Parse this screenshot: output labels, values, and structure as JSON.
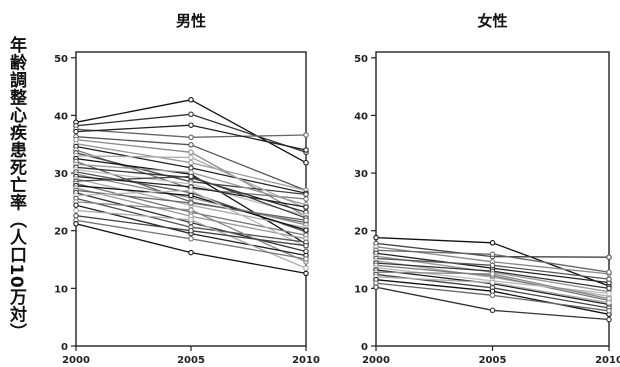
{
  "figure": {
    "ylabel": "年齢調整心疾患死亡率（人口10万対）"
  },
  "chart_data": [
    {
      "type": "line",
      "title": "男性",
      "x": [
        2000,
        2005,
        2010
      ],
      "xticks": [
        "2000",
        "2005",
        "2010"
      ],
      "yticks": [
        "0",
        "10",
        "20",
        "30",
        "40",
        "50"
      ],
      "ylim": [
        0,
        51
      ],
      "grid": false,
      "legend": "none",
      "series": [
        {
          "values": [
            38.8,
            42.7,
            31.8
          ],
          "color": "#111111"
        },
        {
          "values": [
            38.2,
            40.2,
            33.6
          ],
          "color": "#333333"
        },
        {
          "values": [
            37.6,
            36.2,
            36.6
          ],
          "color": "#666666"
        },
        {
          "values": [
            37.2,
            38.3,
            34.0
          ],
          "color": "#222222"
        },
        {
          "values": [
            36.3,
            34.9,
            27.0
          ],
          "color": "#555555"
        },
        {
          "values": [
            35.8,
            33.6,
            22.5
          ],
          "color": "#888888"
        },
        {
          "values": [
            35.1,
            31.8,
            27.0
          ],
          "color": "#999999"
        },
        {
          "values": [
            34.6,
            30.9,
            26.5
          ],
          "color": "#222222"
        },
        {
          "values": [
            34.0,
            27.3,
            25.5
          ],
          "color": "#777777"
        },
        {
          "values": [
            33.5,
            28.5,
            26.3
          ],
          "color": "#444444"
        },
        {
          "values": [
            33.0,
            32.7,
            23.9
          ],
          "color": "#aaaaaa"
        },
        {
          "values": [
            32.5,
            29.8,
            17.7
          ],
          "color": "#111111"
        },
        {
          "values": [
            32.0,
            25.0,
            21.4
          ],
          "color": "#666666"
        },
        {
          "values": [
            31.5,
            30.1,
            24.5
          ],
          "color": "#999999"
        },
        {
          "values": [
            31.0,
            29.2,
            23.2
          ],
          "color": "#333333"
        },
        {
          "values": [
            30.6,
            28.1,
            22.6
          ],
          "color": "#bbbbbb"
        },
        {
          "values": [
            30.2,
            26.6,
            19.8
          ],
          "color": "#555555"
        },
        {
          "values": [
            29.8,
            25.7,
            21.0
          ],
          "color": "#888888"
        },
        {
          "values": [
            29.4,
            27.6,
            24.1
          ],
          "color": "#222222"
        },
        {
          "values": [
            29.0,
            24.4,
            20.5
          ],
          "color": "#aaaaaa"
        },
        {
          "values": [
            28.6,
            29.4,
            22.2
          ],
          "color": "#444444"
        },
        {
          "values": [
            28.2,
            23.2,
            19.2
          ],
          "color": "#777777"
        },
        {
          "values": [
            27.8,
            26.1,
            20.1
          ],
          "color": "#111111"
        },
        {
          "values": [
            27.4,
            22.5,
            18.6
          ],
          "color": "#999999"
        },
        {
          "values": [
            27.0,
            24.8,
            21.8
          ],
          "color": "#666666"
        },
        {
          "values": [
            26.6,
            21.4,
            16.4
          ],
          "color": "#333333"
        },
        {
          "values": [
            26.1,
            27.0,
            17.2
          ],
          "color": "#bbbbbb"
        },
        {
          "values": [
            25.6,
            20.6,
            18.0
          ],
          "color": "#555555"
        },
        {
          "values": [
            25.0,
            23.6,
            14.6
          ],
          "color": "#888888"
        },
        {
          "values": [
            24.4,
            19.5,
            15.7
          ],
          "color": "#222222"
        },
        {
          "values": [
            23.5,
            21.9,
            13.5
          ],
          "color": "#aaaaaa"
        },
        {
          "values": [
            22.6,
            20.0,
            17.4
          ],
          "color": "#444444"
        },
        {
          "values": [
            21.8,
            18.6,
            15.1
          ],
          "color": "#777777"
        },
        {
          "values": [
            21.2,
            16.2,
            12.6
          ],
          "color": "#111111"
        }
      ]
    },
    {
      "type": "line",
      "title": "女性",
      "x": [
        2000,
        2005,
        2010
      ],
      "xticks": [
        "2000",
        "2005",
        "2010"
      ],
      "yticks": [
        "0",
        "10",
        "20",
        "30",
        "40",
        "50"
      ],
      "ylim": [
        0,
        51
      ],
      "grid": false,
      "legend": "none",
      "series": [
        {
          "values": [
            18.8,
            17.9,
            10.4
          ],
          "color": "#111111"
        },
        {
          "values": [
            17.8,
            15.5,
            15.4
          ],
          "color": "#444444"
        },
        {
          "values": [
            17.2,
            14.6,
            12.5
          ],
          "color": "#888888"
        },
        {
          "values": [
            16.6,
            15.9,
            12.8
          ],
          "color": "#666666"
        },
        {
          "values": [
            16.1,
            13.5,
            11.0
          ],
          "color": "#222222"
        },
        {
          "values": [
            15.6,
            12.8,
            9.4
          ],
          "color": "#999999"
        },
        {
          "values": [
            15.2,
            14.0,
            11.6
          ],
          "color": "#555555"
        },
        {
          "values": [
            14.8,
            11.9,
            8.6
          ],
          "color": "#aaaaaa"
        },
        {
          "values": [
            14.4,
            13.0,
            10.0
          ],
          "color": "#333333"
        },
        {
          "values": [
            14.0,
            12.2,
            7.9
          ],
          "color": "#777777"
        },
        {
          "values": [
            13.6,
            11.3,
            9.1
          ],
          "color": "#bbbbbb"
        },
        {
          "values": [
            13.2,
            10.8,
            7.2
          ],
          "color": "#222222"
        },
        {
          "values": [
            12.8,
            12.5,
            8.2
          ],
          "color": "#888888"
        },
        {
          "values": [
            12.4,
            10.1,
            6.6
          ],
          "color": "#444444"
        },
        {
          "values": [
            12.0,
            11.0,
            7.5
          ],
          "color": "#aaaaaa"
        },
        {
          "values": [
            11.5,
            9.5,
            5.5
          ],
          "color": "#111111"
        },
        {
          "values": [
            10.9,
            8.8,
            6.1
          ],
          "color": "#666666"
        },
        {
          "values": [
            10.2,
            6.2,
            4.6
          ],
          "color": "#333333"
        }
      ]
    }
  ]
}
